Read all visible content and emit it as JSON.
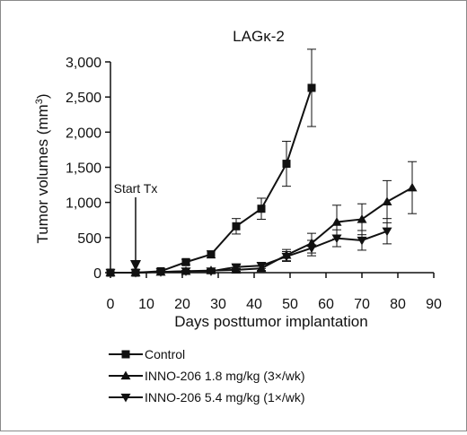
{
  "chart_data": {
    "type": "line",
    "title": "LAGκ-2",
    "xlabel": "Days posttumor implantation",
    "ylabel": "Tumor volumes (mm3)",
    "ylabel_parts": {
      "main": "Tumor volumes (mm",
      "sup": "3",
      "close": ")"
    },
    "xlim": [
      0,
      90
    ],
    "ylim": [
      0,
      3000
    ],
    "xticks": [
      0,
      10,
      20,
      30,
      40,
      50,
      60,
      70,
      80,
      90
    ],
    "yticks": [
      0,
      500,
      1000,
      1500,
      2000,
      2500,
      3000
    ],
    "ytick_labels": [
      "0",
      "500",
      "1,000",
      "1,500",
      "2,000",
      "2,500",
      "3,000"
    ],
    "grid": false,
    "legend_position": "bottom-left",
    "annotation": {
      "text": "Start Tx",
      "x": 7,
      "arrow_to_y": 0
    },
    "series": [
      {
        "name": "Control",
        "marker": "square",
        "x": [
          0,
          7,
          14,
          21,
          28,
          35,
          42,
          49,
          56
        ],
        "y": [
          0,
          0,
          20,
          150,
          260,
          660,
          910,
          1550,
          2630
        ],
        "err": [
          0,
          0,
          10,
          40,
          50,
          110,
          150,
          320,
          550
        ]
      },
      {
        "name": "INNO-206 1.8 mg/kg (3×/wk)",
        "marker": "triangle-up",
        "x": [
          0,
          7,
          14,
          21,
          28,
          35,
          42,
          49,
          56,
          63,
          70,
          77,
          84
        ],
        "y": [
          0,
          0,
          10,
          20,
          30,
          40,
          60,
          250,
          420,
          720,
          760,
          1010,
          1210
        ],
        "err": [
          0,
          0,
          5,
          10,
          15,
          20,
          30,
          80,
          140,
          240,
          220,
          300,
          370
        ]
      },
      {
        "name": "INNO-206 5.4 mg/kg (1×/wk)",
        "marker": "triangle-down",
        "x": [
          0,
          7,
          14,
          21,
          28,
          35,
          42,
          49,
          56,
          63,
          70,
          77
        ],
        "y": [
          0,
          0,
          10,
          20,
          20,
          80,
          100,
          230,
          350,
          490,
          460,
          590
        ],
        "err": [
          0,
          0,
          5,
          10,
          10,
          30,
          40,
          70,
          110,
          120,
          140,
          180
        ]
      }
    ]
  }
}
